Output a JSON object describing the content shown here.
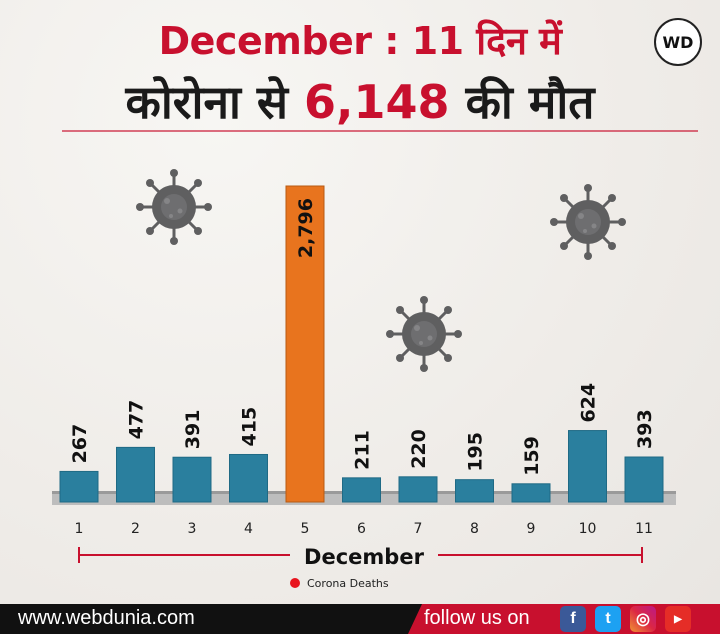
{
  "header": {
    "title_line1": "December : 11 दिन में",
    "title_line2_pre": "कोरोना से ",
    "title_line2_num": "6,148",
    "title_line2_post": " की मौत",
    "logo": "WD"
  },
  "colors": {
    "accent": "#c8102e",
    "bar": "#2a7f9e",
    "highlight_bar": "#e8741e"
  },
  "chart_data": {
    "type": "bar",
    "categories": [
      "1",
      "2",
      "3",
      "4",
      "5",
      "6",
      "7",
      "8",
      "9",
      "10",
      "11"
    ],
    "values": [
      267,
      477,
      391,
      415,
      2796,
      211,
      220,
      195,
      159,
      624,
      393
    ],
    "value_labels": [
      "267",
      "477",
      "391",
      "415",
      "2,796",
      "211",
      "220",
      "195",
      "159",
      "624",
      "393"
    ],
    "highlight_index": 4,
    "xlabel": "December",
    "ylabel": "",
    "legend": [
      {
        "name": "Corona Deaths",
        "color": "#e8141e"
      }
    ],
    "legend_position": "bottom-center",
    "grid": false
  },
  "footer": {
    "url": "www.webdunia.com",
    "follow": "follow us on",
    "social_icons": [
      "facebook-icon",
      "twitter-icon",
      "instagram-icon",
      "youtube-icon"
    ]
  }
}
